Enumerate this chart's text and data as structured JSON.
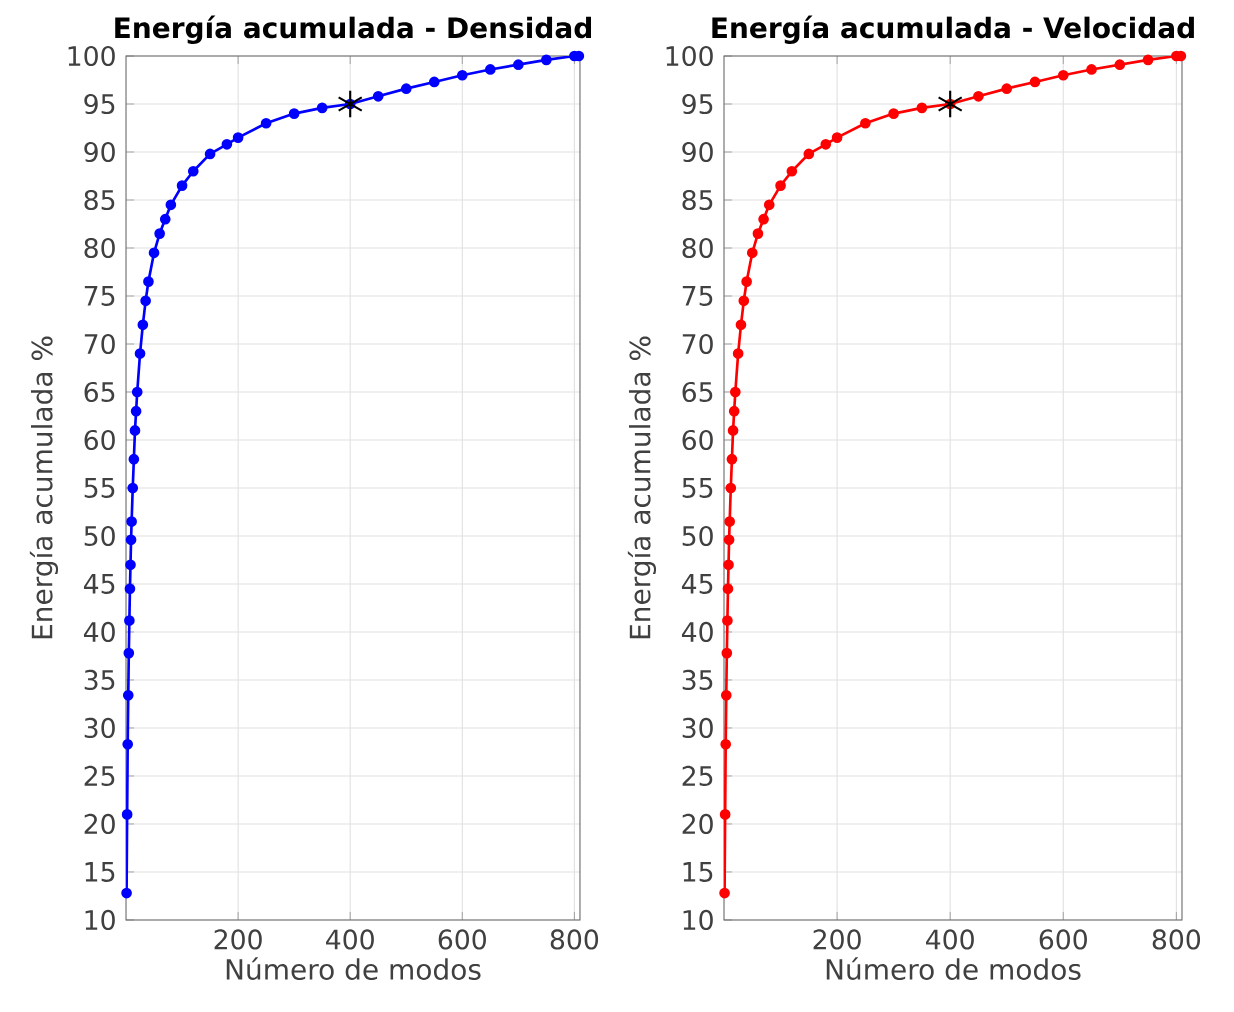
{
  "chart_data": [
    {
      "type": "line",
      "title": "Energía acumulada - Densidad",
      "xlabel": "Número de modos",
      "ylabel": "Energía acumulada %",
      "xlim": [
        0,
        810
      ],
      "ylim": [
        10,
        100
      ],
      "xticks": [
        200,
        400,
        600,
        800
      ],
      "yticks": [
        10,
        15,
        20,
        25,
        30,
        35,
        40,
        45,
        50,
        55,
        60,
        65,
        70,
        75,
        80,
        85,
        90,
        95,
        100
      ],
      "grid": true,
      "line_style": "solid",
      "series": [
        {
          "color": "#0000ff",
          "marker": "circle",
          "x": [
            1,
            2,
            3,
            4,
            5,
            6,
            7,
            8,
            9,
            10,
            12,
            14,
            16,
            18,
            20,
            25,
            30,
            35,
            40,
            50,
            60,
            70,
            80,
            100,
            120,
            150,
            180,
            200,
            250,
            300,
            350,
            400,
            450,
            500,
            550,
            600,
            650,
            700,
            750,
            800,
            808
          ],
          "values": [
            12.8,
            21,
            28.3,
            33.4,
            37.8,
            41.2,
            44.5,
            47,
            49.6,
            51.5,
            55,
            58,
            61,
            63,
            65,
            69,
            72,
            74.5,
            76.5,
            79.5,
            81.5,
            83,
            84.5,
            86.5,
            88,
            89.8,
            90.8,
            91.5,
            93,
            94,
            94.6,
            95,
            95.8,
            96.6,
            97.3,
            98,
            98.6,
            99.1,
            99.6,
            100,
            100
          ]
        },
        {
          "type": "scatter",
          "color": "#000000",
          "marker": "cross",
          "x": [
            400
          ],
          "values": [
            95
          ]
        }
      ]
    },
    {
      "type": "line",
      "title": "Energía acumulada - Velocidad",
      "xlabel": "Número de modos",
      "ylabel": "Energía acumulada %",
      "xlim": [
        0,
        810
      ],
      "ylim": [
        10,
        100
      ],
      "xticks": [
        200,
        400,
        600,
        800
      ],
      "yticks": [
        10,
        15,
        20,
        25,
        30,
        35,
        40,
        45,
        50,
        55,
        60,
        65,
        70,
        75,
        80,
        85,
        90,
        95,
        100
      ],
      "grid": true,
      "line_style": "solid",
      "series": [
        {
          "color": "#ff0000",
          "marker": "circle",
          "x": [
            1,
            2,
            3,
            4,
            5,
            6,
            7,
            8,
            9,
            10,
            12,
            14,
            16,
            18,
            20,
            25,
            30,
            35,
            40,
            50,
            60,
            70,
            80,
            100,
            120,
            150,
            180,
            200,
            250,
            300,
            350,
            400,
            450,
            500,
            550,
            600,
            650,
            700,
            750,
            800,
            808
          ],
          "values": [
            12.8,
            21,
            28.3,
            33.4,
            37.8,
            41.2,
            44.5,
            47,
            49.6,
            51.5,
            55,
            58,
            61,
            63,
            65,
            69,
            72,
            74.5,
            76.5,
            79.5,
            81.5,
            83,
            84.5,
            86.5,
            88,
            89.8,
            90.8,
            91.5,
            93,
            94,
            94.6,
            95,
            95.8,
            96.6,
            97.3,
            98,
            98.6,
            99.1,
            99.6,
            100,
            100
          ]
        },
        {
          "type": "scatter",
          "color": "#000000",
          "marker": "cross",
          "x": [
            400
          ],
          "values": [
            95
          ]
        }
      ]
    }
  ]
}
